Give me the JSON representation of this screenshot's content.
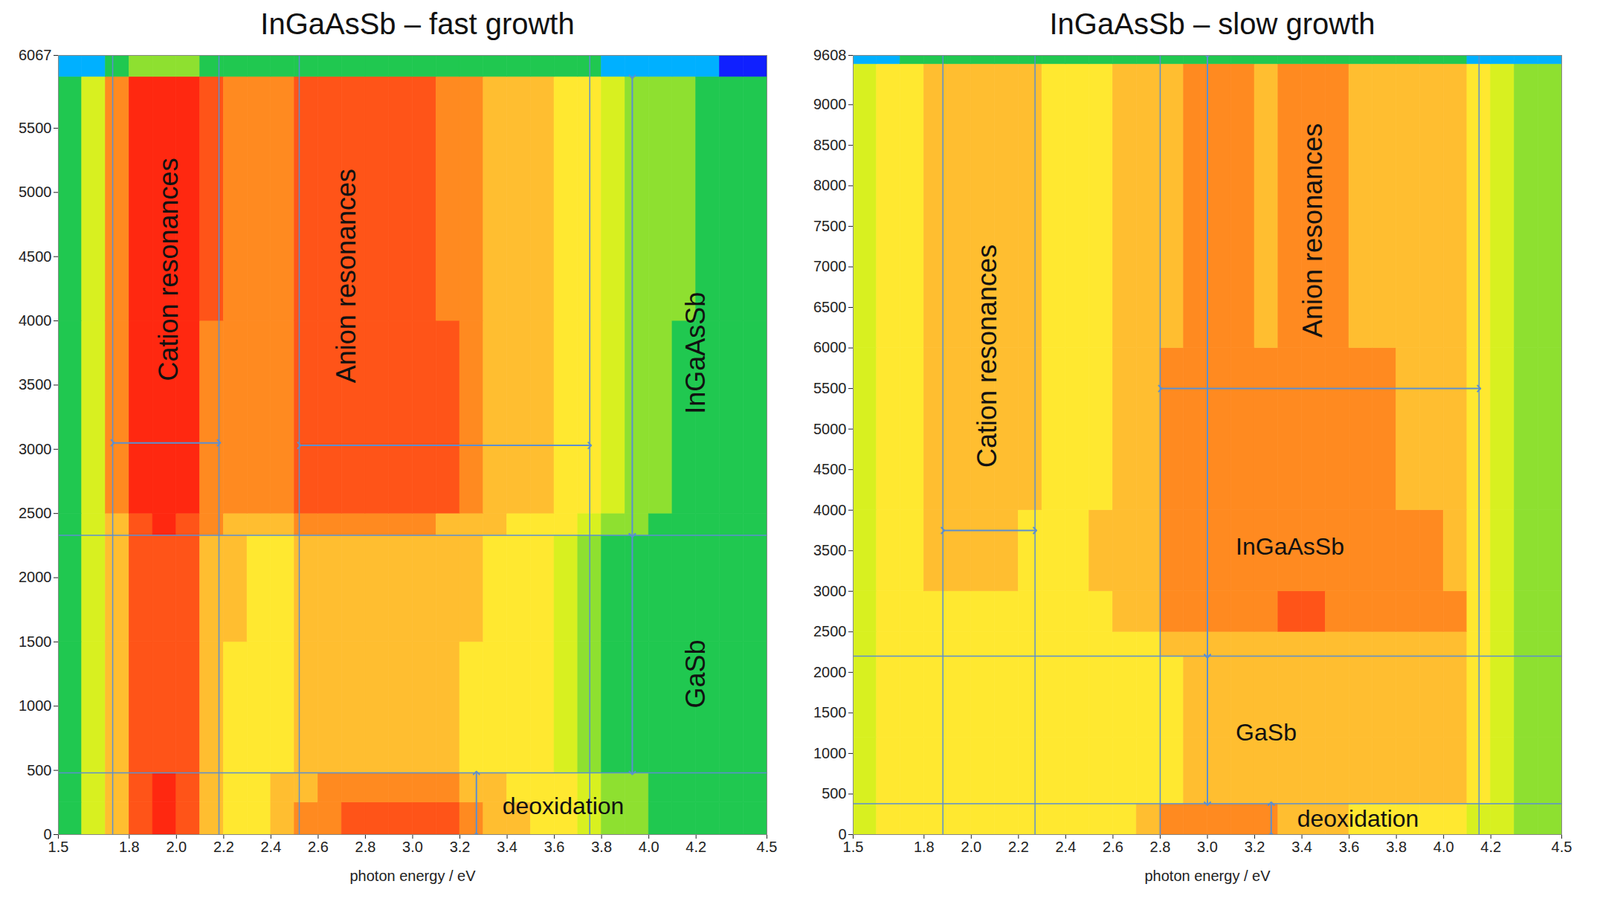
{
  "chart_data": [
    {
      "type": "heatmap",
      "title": "InGaAsSb – fast growth",
      "xlabel": "photon energy / eV",
      "xlim": [
        1.5,
        4.5
      ],
      "xticks": [
        1.5,
        1.8,
        {
          "value": 2,
          "label": "2.0"
        },
        2.2,
        2.4,
        2.6,
        2.8,
        {
          "value": 3,
          "label": "3.0"
        },
        3.2,
        3.4,
        3.6,
        3.8,
        {
          "value": 4,
          "label": "4.0"
        },
        4.2,
        4.5
      ],
      "ylim": [
        0,
        6067
      ],
      "yticks": [
        0,
        500,
        1000,
        1500,
        2000,
        2500,
        3000,
        3500,
        4000,
        4500,
        5000,
        5500,
        6067
      ],
      "zlim": [
        0,
        9
      ],
      "x_edges": [
        1.5,
        1.6,
        1.7,
        1.8,
        1.9,
        2.0,
        2.1,
        2.2,
        2.3,
        2.4,
        2.5,
        2.6,
        2.7,
        2.8,
        2.9,
        3.0,
        3.1,
        3.2,
        3.3,
        3.4,
        3.5,
        3.6,
        3.7,
        3.8,
        3.9,
        4.0,
        4.1,
        4.2,
        4.3,
        4.4,
        4.5
      ],
      "y_edges": [
        0,
        250,
        480,
        1500,
        2330,
        2500,
        4000,
        5900,
        6067
      ],
      "cells": [
        [
          2,
          4,
          6,
          8,
          9,
          8,
          6,
          5,
          5,
          6,
          7,
          7,
          8,
          8,
          8,
          8,
          8,
          7,
          6,
          6,
          5,
          5,
          4,
          3,
          3,
          2,
          2,
          2,
          2,
          2
        ],
        [
          2,
          4,
          6,
          8,
          9,
          8,
          6,
          5,
          5,
          6,
          6,
          7,
          7,
          7,
          7,
          7,
          7,
          6,
          6,
          5,
          5,
          5,
          4,
          3,
          3,
          2,
          2,
          2,
          2,
          2
        ],
        [
          2,
          4,
          6,
          8,
          8,
          8,
          6,
          5,
          5,
          5,
          6,
          6,
          6,
          6,
          6,
          6,
          6,
          5,
          5,
          5,
          5,
          4,
          3,
          2,
          2,
          2,
          2,
          2,
          2,
          2
        ],
        [
          2,
          4,
          6,
          8,
          8,
          8,
          6,
          6,
          5,
          5,
          6,
          6,
          6,
          6,
          6,
          6,
          6,
          6,
          5,
          5,
          5,
          4,
          3,
          2,
          2,
          2,
          2,
          2,
          2,
          2
        ],
        [
          2,
          4,
          6,
          8,
          9,
          8,
          7,
          6,
          6,
          6,
          7,
          7,
          7,
          7,
          7,
          7,
          6,
          6,
          6,
          5,
          5,
          5,
          4,
          3,
          3,
          2,
          2,
          2,
          2,
          2
        ],
        [
          2,
          4,
          7,
          9,
          9,
          9,
          7,
          7,
          7,
          7,
          8,
          8,
          8,
          8,
          8,
          8,
          8,
          7,
          6,
          6,
          6,
          5,
          5,
          4,
          3,
          3,
          2,
          2,
          2,
          2
        ],
        [
          2,
          4,
          7,
          9,
          9,
          9,
          8,
          7,
          7,
          7,
          8,
          8,
          8,
          8,
          8,
          8,
          7,
          7,
          6,
          6,
          6,
          5,
          5,
          4,
          3,
          3,
          3,
          2,
          2,
          2
        ],
        [
          1,
          1,
          2,
          3,
          3,
          3,
          2,
          2,
          2,
          2,
          2,
          2,
          2,
          2,
          2,
          2,
          2,
          2,
          2,
          2,
          2,
          2,
          2,
          1,
          1,
          1,
          1,
          1,
          0,
          0
        ]
      ],
      "vertical_lines": [
        1.73,
        2.18,
        2.52,
        3.75
      ],
      "horizontal_lines": [
        480,
        2330
      ],
      "arrows": [
        {
          "x1": 1.73,
          "y1": 3050,
          "x2": 2.18,
          "y2": 3050
        },
        {
          "x1": 2.52,
          "y1": 3030,
          "x2": 3.75,
          "y2": 3030
        },
        {
          "x1": 3.93,
          "y1": 5900,
          "x2": 3.93,
          "y2": 2330
        },
        {
          "x1": 3.93,
          "y1": 2330,
          "x2": 3.93,
          "y2": 480
        },
        {
          "x1": 3.27,
          "y1": 0,
          "x2": 3.27,
          "y2": 480
        }
      ],
      "annotations": [
        {
          "text": "Cation resonances",
          "x": 1.97,
          "y": 4400,
          "orientation": "vertical"
        },
        {
          "text": "Anion resonances",
          "x": 2.72,
          "y": 4350,
          "orientation": "vertical"
        },
        {
          "text": "InGaAsSb",
          "x": 4.2,
          "y": 3750,
          "orientation": "vertical"
        },
        {
          "text": "GaSb",
          "x": 4.2,
          "y": 1250,
          "orientation": "vertical"
        },
        {
          "text": "deoxidation",
          "x": 3.38,
          "y": 220,
          "orientation": "horizontal"
        }
      ]
    },
    {
      "type": "heatmap",
      "title": "InGaAsSb – slow growth",
      "xlabel": "photon energy / eV",
      "xlim": [
        1.5,
        4.5
      ],
      "xticks": [
        1.5,
        1.8,
        {
          "value": 2,
          "label": "2.0"
        },
        2.2,
        2.4,
        2.6,
        2.8,
        {
          "value": 3,
          "label": "3.0"
        },
        3.2,
        3.4,
        3.6,
        3.8,
        {
          "value": 4,
          "label": "4.0"
        },
        4.2,
        4.5
      ],
      "ylim": [
        0,
        9608
      ],
      "yticks": [
        0,
        500,
        1000,
        1500,
        2000,
        2500,
        3000,
        3500,
        4000,
        4500,
        5000,
        5500,
        6000,
        6500,
        7000,
        7500,
        8000,
        8500,
        9000,
        9608
      ],
      "zlim": [
        0,
        9
      ],
      "x_edges": [
        1.5,
        1.6,
        1.7,
        1.8,
        1.9,
        2.0,
        2.1,
        2.2,
        2.3,
        2.4,
        2.5,
        2.6,
        2.7,
        2.8,
        2.9,
        3.0,
        3.1,
        3.2,
        3.3,
        3.4,
        3.5,
        3.6,
        3.7,
        3.8,
        3.9,
        4.0,
        4.1,
        4.2,
        4.3,
        4.4,
        4.5
      ],
      "y_edges": [
        0,
        380,
        1200,
        2200,
        2500,
        3000,
        4000,
        6000,
        9500,
        9608
      ],
      "cells": [
        [
          4,
          5,
          5,
          5,
          5,
          5,
          5,
          5,
          5,
          5,
          5,
          5,
          6,
          7,
          7,
          7,
          7,
          7,
          6,
          6,
          6,
          5,
          5,
          5,
          5,
          5,
          4,
          4,
          3,
          3
        ],
        [
          4,
          5,
          5,
          5,
          5,
          5,
          5,
          5,
          5,
          5,
          5,
          5,
          5,
          5,
          6,
          6,
          6,
          6,
          6,
          6,
          6,
          6,
          6,
          6,
          6,
          6,
          5,
          4,
          3,
          3
        ],
        [
          4,
          5,
          5,
          5,
          5,
          5,
          5,
          5,
          5,
          5,
          5,
          5,
          5,
          5,
          6,
          6,
          6,
          6,
          6,
          6,
          6,
          6,
          6,
          6,
          6,
          6,
          5,
          4,
          3,
          3
        ],
        [
          4,
          5,
          5,
          5,
          5,
          5,
          5,
          5,
          5,
          5,
          5,
          5,
          5,
          6,
          6,
          6,
          6,
          6,
          6,
          6,
          6,
          6,
          6,
          6,
          6,
          6,
          5,
          4,
          3,
          3
        ],
        [
          4,
          5,
          5,
          5,
          5,
          5,
          5,
          5,
          5,
          5,
          5,
          6,
          6,
          7,
          7,
          7,
          7,
          7,
          8,
          8,
          7,
          7,
          7,
          7,
          7,
          7,
          5,
          4,
          3,
          3
        ],
        [
          4,
          5,
          5,
          6,
          6,
          6,
          6,
          5,
          5,
          5,
          6,
          6,
          6,
          7,
          7,
          7,
          7,
          7,
          7,
          7,
          7,
          7,
          7,
          7,
          7,
          6,
          5,
          4,
          3,
          3
        ],
        [
          4,
          5,
          5,
          6,
          6,
          6,
          6,
          6,
          5,
          5,
          5,
          6,
          6,
          7,
          7,
          7,
          7,
          7,
          7,
          7,
          7,
          7,
          7,
          6,
          6,
          6,
          5,
          4,
          3,
          3
        ],
        [
          4,
          5,
          5,
          6,
          6,
          6,
          6,
          6,
          5,
          5,
          5,
          6,
          6,
          6,
          7,
          7,
          7,
          6,
          7,
          7,
          7,
          6,
          6,
          6,
          6,
          6,
          5,
          4,
          3,
          3
        ],
        [
          1,
          1,
          2,
          2,
          2,
          2,
          2,
          2,
          2,
          2,
          2,
          2,
          2,
          2,
          2,
          2,
          2,
          2,
          2,
          2,
          2,
          2,
          2,
          2,
          2,
          2,
          1,
          1,
          1,
          1
        ]
      ],
      "vertical_lines": [
        1.88,
        2.27,
        2.8,
        4.15
      ],
      "horizontal_lines": [
        380,
        2200
      ],
      "arrows": [
        {
          "x1": 1.88,
          "y1": 3750,
          "x2": 2.27,
          "y2": 3750
        },
        {
          "x1": 2.8,
          "y1": 5500,
          "x2": 4.15,
          "y2": 5500
        },
        {
          "x1": 3.0,
          "y1": 9608,
          "x2": 3.0,
          "y2": 2200
        },
        {
          "x1": 3.0,
          "y1": 2200,
          "x2": 3.0,
          "y2": 380
        },
        {
          "x1": 3.27,
          "y1": 0,
          "x2": 3.27,
          "y2": 380
        }
      ],
      "annotations": [
        {
          "text": "Cation resonances",
          "x": 2.07,
          "y": 5900,
          "orientation": "vertical"
        },
        {
          "text": "Anion resonances",
          "x": 3.45,
          "y": 7450,
          "orientation": "vertical"
        },
        {
          "text": "InGaAsSb",
          "x": 3.12,
          "y": 3550,
          "orientation": "horizontal"
        },
        {
          "text": "GaSb",
          "x": 3.12,
          "y": 1250,
          "orientation": "horizontal"
        },
        {
          "text": "deoxidation",
          "x": 3.38,
          "y": 190,
          "orientation": "horizontal"
        }
      ]
    }
  ]
}
